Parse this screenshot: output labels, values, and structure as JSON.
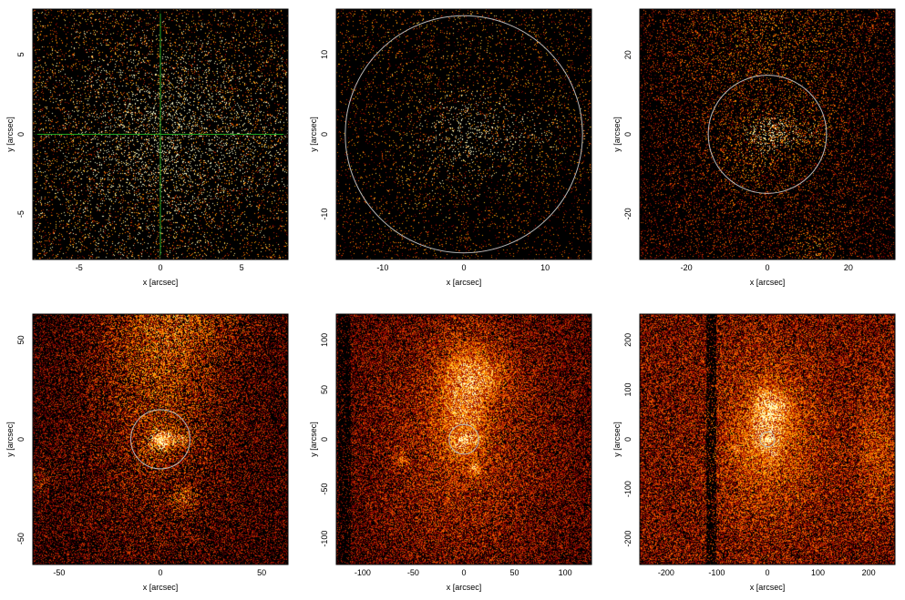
{
  "chart_data": [
    {
      "type": "heatmap",
      "panel": "top-left",
      "xlim": [
        -7.85,
        7.85
      ],
      "ylim": [
        -7.85,
        7.85
      ],
      "xticks": [
        -5,
        0,
        5
      ],
      "yticks": [
        -5,
        0,
        5
      ],
      "xlabel": "x [arcsec]",
      "ylabel": "y [arcsec]",
      "crosshair": {
        "x": 0,
        "y": 0,
        "color": "#1fa31f"
      },
      "circle": null,
      "density": 0.06,
      "brightness": 0.55,
      "band": null
    },
    {
      "type": "heatmap",
      "panel": "top-middle",
      "xlim": [
        -15.7,
        15.7
      ],
      "ylim": [
        -15.7,
        15.7
      ],
      "xticks": [
        -10,
        0,
        10
      ],
      "yticks": [
        -10,
        0,
        10
      ],
      "xlabel": "x [arcsec]",
      "ylabel": "y [arcsec]",
      "crosshair": null,
      "circle": {
        "x": 0,
        "y": 0,
        "r": 14.6,
        "color": "#b8b8b8"
      },
      "density": 0.05,
      "brightness": 0.5,
      "band": null
    },
    {
      "type": "heatmap",
      "panel": "top-right",
      "xlim": [
        -31.5,
        31.5
      ],
      "ylim": [
        -31.5,
        31.5
      ],
      "xticks": [
        -20,
        0,
        20
      ],
      "yticks": [
        -20,
        0,
        20
      ],
      "xlabel": "x [arcsec]",
      "ylabel": "y [arcsec]",
      "crosshair": null,
      "circle": {
        "x": 0,
        "y": 0,
        "r": 14.6,
        "color": "#b8b8b8"
      },
      "density": 0.14,
      "brightness": 0.45,
      "band": null
    },
    {
      "type": "heatmap",
      "panel": "bottom-left",
      "xlim": [
        -63,
        63
      ],
      "ylim": [
        -63,
        63
      ],
      "xticks": [
        -50,
        0,
        50
      ],
      "yticks": [
        -50,
        0,
        50
      ],
      "xlabel": "x [arcsec]",
      "ylabel": "y [arcsec]",
      "crosshair": null,
      "circle": {
        "x": 0,
        "y": 0,
        "r": 14.6,
        "color": "#b8b8b8"
      },
      "density": 0.45,
      "brightness": 0.45,
      "band": null
    },
    {
      "type": "heatmap",
      "panel": "bottom-middle",
      "xlim": [
        -126,
        126
      ],
      "ylim": [
        -126,
        126
      ],
      "xticks": [
        -100,
        -50,
        0,
        50,
        100
      ],
      "yticks": [
        -100,
        -50,
        0,
        50,
        100
      ],
      "xlabel": "x [arcsec]",
      "ylabel": "y [arcsec]",
      "crosshair": null,
      "circle": {
        "x": 0,
        "y": 0,
        "r": 14.6,
        "color": "#b8b8b8"
      },
      "density": 0.75,
      "brightness": 0.55,
      "band": {
        "x": -118,
        "w": 12
      }
    },
    {
      "type": "heatmap",
      "panel": "bottom-right",
      "xlim": [
        -252,
        252
      ],
      "ylim": [
        -252,
        252
      ],
      "xticks": [
        -200,
        -100,
        0,
        100,
        200
      ],
      "yticks": [
        -200,
        -100,
        0,
        100,
        200
      ],
      "xlabel": "x [arcsec]",
      "ylabel": "y [arcsec]",
      "crosshair": null,
      "circle": {
        "x": 0,
        "y": 0,
        "r": 14.6,
        "color": "#b8b8b8"
      },
      "density": 0.97,
      "brightness": 0.7,
      "band": {
        "x": -110,
        "w": 20
      }
    }
  ]
}
